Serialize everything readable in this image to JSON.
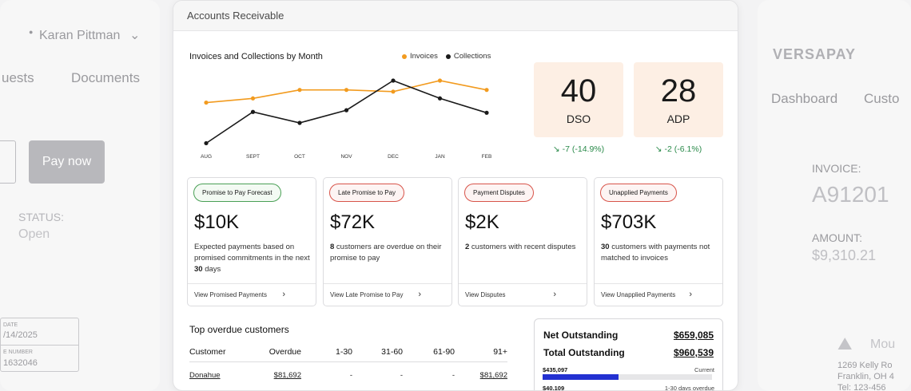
{
  "left_panel": {
    "user_name": "Karan Pittman",
    "tabs": [
      "uests",
      "Documents"
    ],
    "pay_button": "Pay now",
    "status_label": "STATUS:",
    "status_value": "Open",
    "date_label": "DATE",
    "date_value": "/14/2025",
    "number_label": "E NUMBER",
    "number_value": "1632046"
  },
  "right_panel": {
    "logo": "VERSAPAY",
    "tabs": [
      "Dashboard",
      "Custo"
    ],
    "invoice_label": "INVOICE:",
    "invoice_value": "A91201",
    "amount_label": "AMOUNT:",
    "amount_value": "$9,310.21",
    "address_brand": "Mou",
    "address_lines": [
      "1269 Kelly Ro",
      "Franklin, OH 4",
      "Tel: 123-456"
    ]
  },
  "header": {
    "title": "Accounts Receivable"
  },
  "chart_data": {
    "type": "line",
    "title": "Invoices and Collections by Month",
    "categories": [
      "AUG",
      "SEPT",
      "OCT",
      "NOV",
      "DEC",
      "JAN",
      "FEB"
    ],
    "ylim": [
      0,
      100
    ],
    "grid": false,
    "legend": "top-right",
    "series": [
      {
        "name": "Invoices",
        "color": "#f29b1f",
        "values": [
          57,
          62,
          72,
          72,
          70,
          83,
          72
        ]
      },
      {
        "name": "Collections",
        "color": "#1a1a1a",
        "values": [
          9,
          46,
          33,
          48,
          83,
          62,
          45
        ]
      }
    ]
  },
  "kpis": [
    {
      "value": "40",
      "label": "DSO",
      "change": "-7 (-14.9%)"
    },
    {
      "value": "28",
      "label": "ADP",
      "change": "-2 (-6.1%)"
    }
  ],
  "cards": [
    {
      "pill": "Promise to Pay Forecast",
      "tone": "green",
      "amount": "$10K",
      "desc_pre": "Expected payments based on promised commitments in the next ",
      "desc_bold": "30",
      "desc_post": " days",
      "link": "View Promised Payments"
    },
    {
      "pill": "Late Promise to Pay",
      "tone": "red",
      "amount": "$72K",
      "desc_pre": "",
      "desc_bold": "8",
      "desc_post": " customers are overdue on their promise to pay",
      "link": "View Late Promise to Pay"
    },
    {
      "pill": "Payment Disputes",
      "tone": "red",
      "amount": "$2K",
      "desc_pre": "",
      "desc_bold": "2",
      "desc_post": " customers with recent disputes",
      "link": "View Disputes"
    },
    {
      "pill": "Unapplied Payments",
      "tone": "red",
      "amount": "$703K",
      "desc_pre": "",
      "desc_bold": "30",
      "desc_post": " customers with payments not matched to invoices",
      "link": "View Unapplied Payments"
    }
  ],
  "overdue": {
    "title": "Top overdue customers",
    "columns": [
      "Customer",
      "Overdue",
      "1-30",
      "31-60",
      "61-90",
      "91+"
    ],
    "rows": [
      [
        "Donahue",
        "$81,692",
        "-",
        "-",
        "-",
        "$81,692"
      ]
    ]
  },
  "outstanding": {
    "net_label": "Net Outstanding",
    "net_value": "$659,085",
    "total_label": "Total Outstanding",
    "total_value": "$960,539",
    "bars": [
      {
        "amount": "$435,097",
        "label": "Current",
        "fraction": 0.45
      },
      {
        "amount": "$40,109",
        "label": "1-30 days overdue",
        "fraction": 0.04
      }
    ]
  },
  "colors": {
    "accent_orange": "#f29b1f",
    "positive_green": "#2a8a4a",
    "kpi_bg": "#fdefe4",
    "bar_blue": "#2331d1"
  }
}
